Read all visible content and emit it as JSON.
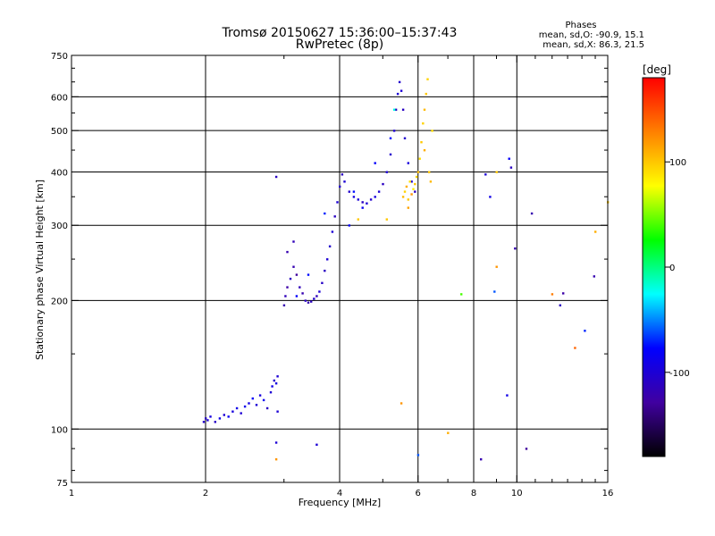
{
  "chart_data": {
    "type": "scatter",
    "title": "Tromsø 20150627 15:36:00–15:37:43",
    "subtitle": "RwPretec (8p)",
    "xlabel": "Frequency [MHz]",
    "ylabel": "Stationary phase Virtual Height [km]",
    "x_scale": "log2",
    "y_scale": "log",
    "xlim": [
      1,
      16
    ],
    "ylim": [
      75,
      750
    ],
    "x_ticks": [
      1,
      2,
      4,
      6,
      8,
      10,
      16
    ],
    "x_tick_labels": [
      "1",
      "2",
      "4",
      "6",
      "8",
      "10",
      "16"
    ],
    "y_ticks": [
      75,
      100,
      200,
      300,
      400,
      500,
      600,
      750
    ],
    "y_tick_labels": [
      "75",
      "100",
      "200",
      "300",
      "400",
      "500",
      "600",
      "750"
    ],
    "grid": true,
    "stats": {
      "heading": "Phases",
      "line_o": "mean, sd,O: -90.9, 15.1",
      "line_x": "mean, sd,X:  86.3, 21.5"
    },
    "colorbar": {
      "label": "[deg]",
      "range": [
        -180,
        180
      ],
      "ticks": [
        100,
        0,
        -100
      ],
      "tick_labels": [
        "100",
        "0",
        "-100"
      ],
      "colors": [
        "#ff0000",
        "#ff8000",
        "#ffff00",
        "#00ff00",
        "#00ffff",
        "#0000ff",
        "#4000a0",
        "#000000"
      ]
    },
    "points": [
      {
        "f": 1.98,
        "h": 104,
        "p": -105
      },
      {
        "f": 2.0,
        "h": 106,
        "p": -110
      },
      {
        "f": 2.02,
        "h": 105,
        "p": -100
      },
      {
        "f": 2.05,
        "h": 107,
        "p": -95
      },
      {
        "f": 2.1,
        "h": 104,
        "p": -108
      },
      {
        "f": 2.15,
        "h": 106,
        "p": -90
      },
      {
        "f": 2.2,
        "h": 108,
        "p": -100
      },
      {
        "f": 2.25,
        "h": 107,
        "p": -85
      },
      {
        "f": 2.3,
        "h": 110,
        "p": -95
      },
      {
        "f": 2.35,
        "h": 112,
        "p": -90
      },
      {
        "f": 2.4,
        "h": 109,
        "p": -100
      },
      {
        "f": 2.45,
        "h": 113,
        "p": -88
      },
      {
        "f": 2.5,
        "h": 115,
        "p": -92
      },
      {
        "f": 2.55,
        "h": 118,
        "p": -80
      },
      {
        "f": 2.6,
        "h": 114,
        "p": -100
      },
      {
        "f": 2.65,
        "h": 120,
        "p": -95
      },
      {
        "f": 2.7,
        "h": 117,
        "p": -85
      },
      {
        "f": 2.75,
        "h": 112,
        "p": -110
      },
      {
        "f": 2.8,
        "h": 122,
        "p": -100
      },
      {
        "f": 2.82,
        "h": 126,
        "p": -90
      },
      {
        "f": 2.85,
        "h": 130,
        "p": -105
      },
      {
        "f": 2.88,
        "h": 128,
        "p": -95
      },
      {
        "f": 2.9,
        "h": 133,
        "p": -100
      },
      {
        "f": 2.9,
        "h": 110,
        "p": -100
      },
      {
        "f": 2.88,
        "h": 93,
        "p": -100
      },
      {
        "f": 2.88,
        "h": 85,
        "p": 120
      },
      {
        "f": 2.88,
        "h": 390,
        "p": -110
      },
      {
        "f": 3.0,
        "h": 195,
        "p": -120
      },
      {
        "f": 3.02,
        "h": 205,
        "p": -115
      },
      {
        "f": 3.05,
        "h": 215,
        "p": -125
      },
      {
        "f": 3.1,
        "h": 225,
        "p": -110
      },
      {
        "f": 3.15,
        "h": 240,
        "p": -120
      },
      {
        "f": 3.2,
        "h": 230,
        "p": -130
      },
      {
        "f": 3.25,
        "h": 215,
        "p": -115
      },
      {
        "f": 3.3,
        "h": 208,
        "p": -120
      },
      {
        "f": 3.35,
        "h": 200,
        "p": -110
      },
      {
        "f": 3.4,
        "h": 198,
        "p": -118
      },
      {
        "f": 3.45,
        "h": 199,
        "p": -112
      },
      {
        "f": 3.5,
        "h": 202,
        "p": -105
      },
      {
        "f": 3.55,
        "h": 205,
        "p": -115
      },
      {
        "f": 3.6,
        "h": 210,
        "p": -100
      },
      {
        "f": 3.65,
        "h": 220,
        "p": -108
      },
      {
        "f": 3.7,
        "h": 235,
        "p": -110
      },
      {
        "f": 3.75,
        "h": 250,
        "p": -100
      },
      {
        "f": 3.8,
        "h": 268,
        "p": -105
      },
      {
        "f": 3.85,
        "h": 290,
        "p": -100
      },
      {
        "f": 3.9,
        "h": 315,
        "p": -110
      },
      {
        "f": 3.95,
        "h": 340,
        "p": -100
      },
      {
        "f": 4.0,
        "h": 370,
        "p": -105
      },
      {
        "f": 4.05,
        "h": 395,
        "p": -110
      },
      {
        "f": 4.1,
        "h": 380,
        "p": -100
      },
      {
        "f": 4.2,
        "h": 360,
        "p": -105
      },
      {
        "f": 4.3,
        "h": 350,
        "p": -95
      },
      {
        "f": 4.4,
        "h": 345,
        "p": -100
      },
      {
        "f": 4.5,
        "h": 340,
        "p": -110
      },
      {
        "f": 4.6,
        "h": 338,
        "p": -100
      },
      {
        "f": 4.7,
        "h": 345,
        "p": -105
      },
      {
        "f": 4.8,
        "h": 350,
        "p": -95
      },
      {
        "f": 4.9,
        "h": 360,
        "p": -100
      },
      {
        "f": 5.0,
        "h": 375,
        "p": -110
      },
      {
        "f": 5.1,
        "h": 400,
        "p": -100
      },
      {
        "f": 5.2,
        "h": 440,
        "p": -105
      },
      {
        "f": 5.3,
        "h": 500,
        "p": -100
      },
      {
        "f": 5.35,
        "h": 560,
        "p": -110
      },
      {
        "f": 5.4,
        "h": 610,
        "p": -100
      },
      {
        "f": 5.45,
        "h": 650,
        "p": -105
      },
      {
        "f": 5.5,
        "h": 620,
        "p": -100
      },
      {
        "f": 5.55,
        "h": 560,
        "p": -110
      },
      {
        "f": 5.6,
        "h": 480,
        "p": -105
      },
      {
        "f": 5.7,
        "h": 420,
        "p": -95
      },
      {
        "f": 5.8,
        "h": 380,
        "p": -100
      },
      {
        "f": 5.9,
        "h": 360,
        "p": -110
      },
      {
        "f": 3.2,
        "h": 205,
        "p": -80
      },
      {
        "f": 3.4,
        "h": 230,
        "p": -75
      },
      {
        "f": 3.7,
        "h": 320,
        "p": -70
      },
      {
        "f": 4.2,
        "h": 300,
        "p": -80
      },
      {
        "f": 4.3,
        "h": 360,
        "p": -75
      },
      {
        "f": 4.5,
        "h": 330,
        "p": -85
      },
      {
        "f": 4.8,
        "h": 420,
        "p": -80
      },
      {
        "f": 5.2,
        "h": 480,
        "p": -75
      },
      {
        "f": 5.3,
        "h": 560,
        "p": -20
      },
      {
        "f": 5.55,
        "h": 350,
        "p": 105
      },
      {
        "f": 5.6,
        "h": 360,
        "p": 95
      },
      {
        "f": 5.65,
        "h": 370,
        "p": 110
      },
      {
        "f": 5.7,
        "h": 345,
        "p": 100
      },
      {
        "f": 5.75,
        "h": 380,
        "p": 90
      },
      {
        "f": 5.8,
        "h": 355,
        "p": 120
      },
      {
        "f": 5.85,
        "h": 365,
        "p": 85
      },
      {
        "f": 5.9,
        "h": 375,
        "p": 100
      },
      {
        "f": 5.95,
        "h": 390,
        "p": 95
      },
      {
        "f": 6.0,
        "h": 400,
        "p": 105
      },
      {
        "f": 6.05,
        "h": 430,
        "p": 90
      },
      {
        "f": 6.1,
        "h": 470,
        "p": 100
      },
      {
        "f": 6.15,
        "h": 520,
        "p": 95
      },
      {
        "f": 6.2,
        "h": 560,
        "p": 105
      },
      {
        "f": 6.25,
        "h": 610,
        "p": 100
      },
      {
        "f": 6.3,
        "h": 660,
        "p": 95
      },
      {
        "f": 6.2,
        "h": 450,
        "p": 110
      },
      {
        "f": 6.35,
        "h": 400,
        "p": 100
      },
      {
        "f": 6.4,
        "h": 380,
        "p": 105
      },
      {
        "f": 6.45,
        "h": 500,
        "p": 90
      },
      {
        "f": 5.7,
        "h": 330,
        "p": 115
      },
      {
        "f": 5.1,
        "h": 310,
        "p": 100
      },
      {
        "f": 5.5,
        "h": 115,
        "p": 120
      },
      {
        "f": 6.0,
        "h": 87,
        "p": -60
      },
      {
        "f": 7.0,
        "h": 98,
        "p": 110
      },
      {
        "f": 7.5,
        "h": 207,
        "p": 40
      },
      {
        "f": 8.3,
        "h": 85,
        "p": -120
      },
      {
        "f": 8.5,
        "h": 395,
        "p": -100
      },
      {
        "f": 8.7,
        "h": 350,
        "p": -90
      },
      {
        "f": 8.9,
        "h": 210,
        "p": -60
      },
      {
        "f": 9.0,
        "h": 240,
        "p": 120
      },
      {
        "f": 9.0,
        "h": 400,
        "p": 100
      },
      {
        "f": 9.5,
        "h": 120,
        "p": -90
      },
      {
        "f": 9.6,
        "h": 430,
        "p": -80
      },
      {
        "f": 9.7,
        "h": 410,
        "p": -110
      },
      {
        "f": 9.9,
        "h": 265,
        "p": -120
      },
      {
        "f": 10.5,
        "h": 90,
        "p": -130
      },
      {
        "f": 10.8,
        "h": 320,
        "p": -120
      },
      {
        "f": 12.0,
        "h": 207,
        "p": 130
      },
      {
        "f": 12.5,
        "h": 195,
        "p": -110
      },
      {
        "f": 12.7,
        "h": 208,
        "p": -125
      },
      {
        "f": 13.5,
        "h": 155,
        "p": 140
      },
      {
        "f": 14.2,
        "h": 170,
        "p": -70
      },
      {
        "f": 14.9,
        "h": 228,
        "p": -120
      },
      {
        "f": 15.0,
        "h": 290,
        "p": 110
      },
      {
        "f": 16.0,
        "h": 340,
        "p": 100
      },
      {
        "f": 3.55,
        "h": 92,
        "p": -100
      },
      {
        "f": 3.05,
        "h": 260,
        "p": -120
      },
      {
        "f": 3.15,
        "h": 275,
        "p": -115
      },
      {
        "f": 4.4,
        "h": 310,
        "p": 100
      }
    ]
  }
}
